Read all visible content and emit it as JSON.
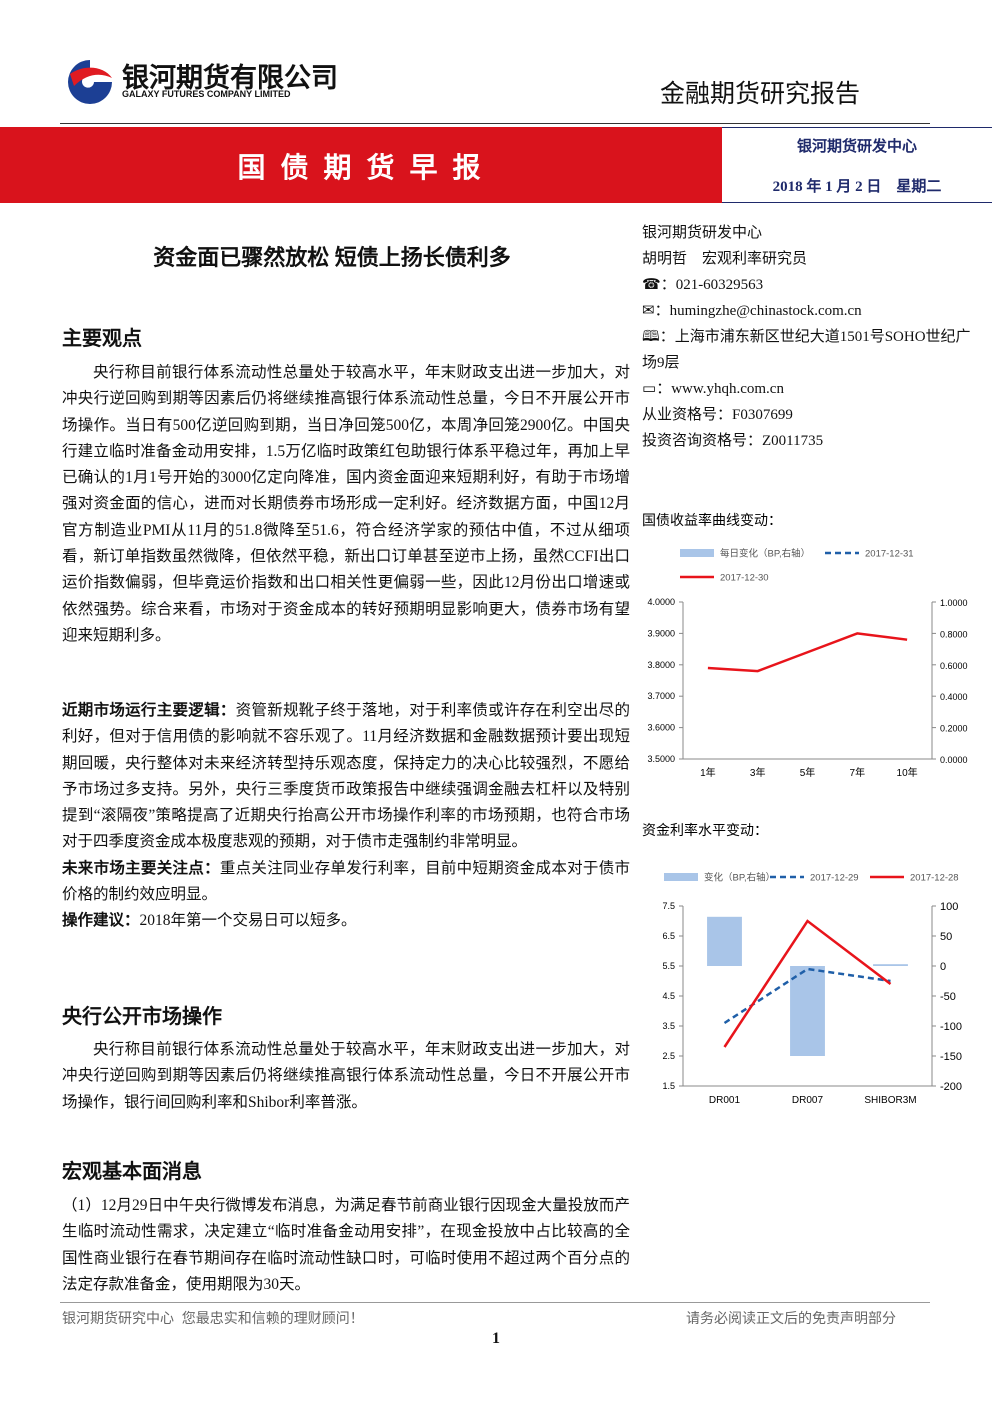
{
  "header": {
    "company_cn": "银河期货有限公司",
    "company_en": "GALAXY FUTURES COMPANY LIMITED",
    "report_type": "金融期货研究报告"
  },
  "banner": {
    "title": "国 债 期 货 早 报",
    "center": "银河期货研发中心",
    "date": "2018 年 1 月 2 日　星期二"
  },
  "article": {
    "headline": "资金面已骤然放松 短债上扬长债利多",
    "section1": {
      "heading": "主要观点",
      "paragraph": "央行称目前银行体系流动性总量处于较高水平，年末财政支出进一步加大，对冲央行逆回购到期等因素后仍将继续推高银行体系流动性总量，今日不开展公开市场操作。当日有500亿逆回购到期，当日净回笼500亿，本周净回笼2900亿。中国央行建立临时准备金动用安排，1.5万亿临时政策红包助银行体系平稳过年，再加上早已确认的1月1号开始的3000亿定向降准，国内资金面迎来短期利好，有助于市场增强对资金面的信心，进而对长期债券市场形成一定利好。经济数据方面，中国12月官方制造业PMI从11月的51.8微降至51.6，符合经济学家的预估中值，不过从细项看，新订单指数虽然微降，但依然平稳，新出口订单甚至逆市上扬，虽然CCFI出口运价指数偏弱，但毕竟运价指数和出口相关性更偏弱一些，因此12月份出口增速或依然强势。综合来看，市场对于资金成本的转好预期明显影响更大，债券市场有望迎来短期利多。",
      "points": [
        {
          "lead": "近期市场运行主要逻辑：",
          "text": "资管新规靴子终于落地，对于利率债或许存在利空出尽的利好，但对于信用债的影响就不容乐观了。11月经济数据和金融数据预计要出现短期回暖，央行整体对未来经济转型持乐观态度，保持定力的决心比较强烈，不愿给予市场过多支持。另外，央行三季度货币政策报告中继续强调金融去杠杆以及特别提到“滚隔夜”策略提高了近期央行抬高公开市场操作利率的市场预期，也符合市场对于四季度资金成本极度悲观的预期，对于债市走强制约非常明显。"
        },
        {
          "lead": "未来市场主要关注点：",
          "text": "重点关注同业存单发行利率，目前中短期资金成本对于债市价格的制约效应明显。"
        },
        {
          "lead": "操作建议：",
          "text": "2018年第一个交易日可以短多。"
        }
      ]
    },
    "section2": {
      "heading": "央行公开市场操作",
      "paragraph": "央行称目前银行体系流动性总量处于较高水平，年末财政支出进一步加大，对冲央行逆回购到期等因素后仍将继续推高银行体系流动性总量，今日不开展公开市场操作，银行间回购利率和Shibor利率普涨。"
    },
    "section3": {
      "heading": "宏观基本面消息",
      "paragraph": "（1）12月29日中午央行微博发布消息，为满足春节前商业银行因现金大量投放而产生临时流动性需求，决定建立“临时准备金动用安排”，在现金投放中占比较高的全国性商业银行在春节期间存在临时流动性缺口时，可临时使用不超过两个百分点的法定存款准备金，使用期限为30天。"
    }
  },
  "sidebar": {
    "org": "银河期货研发中心",
    "author": "胡明哲　宏观利率研究员",
    "phone": "：021-60329563",
    "email": "：humingzhe@chinastock.com.cn",
    "address": "：上海市浦东新区世纪大道1501号SOHO世纪广场9层",
    "web": "：www.yhqh.com.cn",
    "license": "从业资格号：F0307699",
    "advisor": "投资咨询资格号：Z0011735"
  },
  "footer": {
    "left": "银河期货研究中心  您最忠实和信赖的理财顾问！",
    "right": "请务必阅读正文后的免责声明部分",
    "page": "1"
  },
  "chart_data": [
    {
      "type": "combo",
      "title": "国债收益率曲线变动：",
      "categories": [
        "1年",
        "3年",
        "5年",
        "7年",
        "10年"
      ],
      "series": [
        {
          "name": "每日变化（BP,右轴）",
          "type": "bar",
          "axis": "y2",
          "color": "#a9c5e8",
          "values": [
            0,
            0,
            0,
            0,
            0
          ]
        },
        {
          "name": "2017-12-31",
          "type": "line",
          "style": "dashed",
          "color": "#1f5fa8",
          "values": [
            null,
            null,
            null,
            null,
            null
          ]
        },
        {
          "name": "2017-12-30",
          "type": "line",
          "style": "solid",
          "color": "#e8141b",
          "values": [
            3.79,
            3.78,
            3.84,
            3.9,
            3.88
          ]
        }
      ],
      "ylim": [
        3.5,
        4.0
      ],
      "yticks": [
        {
          "value": 3.5,
          "label": "3.5000"
        },
        {
          "value": 3.6,
          "label": "3.6000"
        },
        {
          "value": 3.7,
          "label": "3.7000"
        },
        {
          "value": 3.8,
          "label": "3.8000"
        },
        {
          "value": 3.9,
          "label": "3.9000"
        },
        {
          "value": 4.0,
          "label": "4.0000"
        }
      ],
      "y2lim": [
        0,
        1
      ],
      "y2ticks": [
        {
          "value": 0,
          "label": "0.0000"
        },
        {
          "value": 0.2,
          "label": "0.2000"
        },
        {
          "value": 0.4,
          "label": "0.4000"
        },
        {
          "value": 0.6,
          "label": "0.6000"
        },
        {
          "value": 0.8,
          "label": "0.8000"
        },
        {
          "value": 1,
          "label": "1.0000"
        }
      ],
      "grid": false
    },
    {
      "type": "combo",
      "title": "资金利率水平变动：",
      "categories": [
        "DR001",
        "DR007",
        "SHIBOR3M"
      ],
      "series": [
        {
          "name": "变化（BP,右轴）",
          "type": "bar",
          "axis": "y2",
          "color": "#a9c5e8",
          "values": [
            82,
            -150,
            3
          ]
        },
        {
          "name": "2017-12-29",
          "type": "line",
          "style": "dashed",
          "color": "#1f5fa8",
          "values": [
            3.6,
            5.4,
            5.0
          ]
        },
        {
          "name": "2017-12-28",
          "type": "line",
          "style": "solid",
          "color": "#e8141b",
          "values": [
            2.8,
            7.0,
            4.9
          ]
        }
      ],
      "ylim": [
        1.5,
        7.5
      ],
      "yticks": [
        1.5,
        2.5,
        3.5,
        4.5,
        5.5,
        6.5,
        7.5
      ],
      "y2lim": [
        -200,
        100
      ],
      "y2ticks": [
        -200,
        -150,
        -100,
        -50,
        0,
        50,
        100
      ],
      "grid": false
    }
  ]
}
